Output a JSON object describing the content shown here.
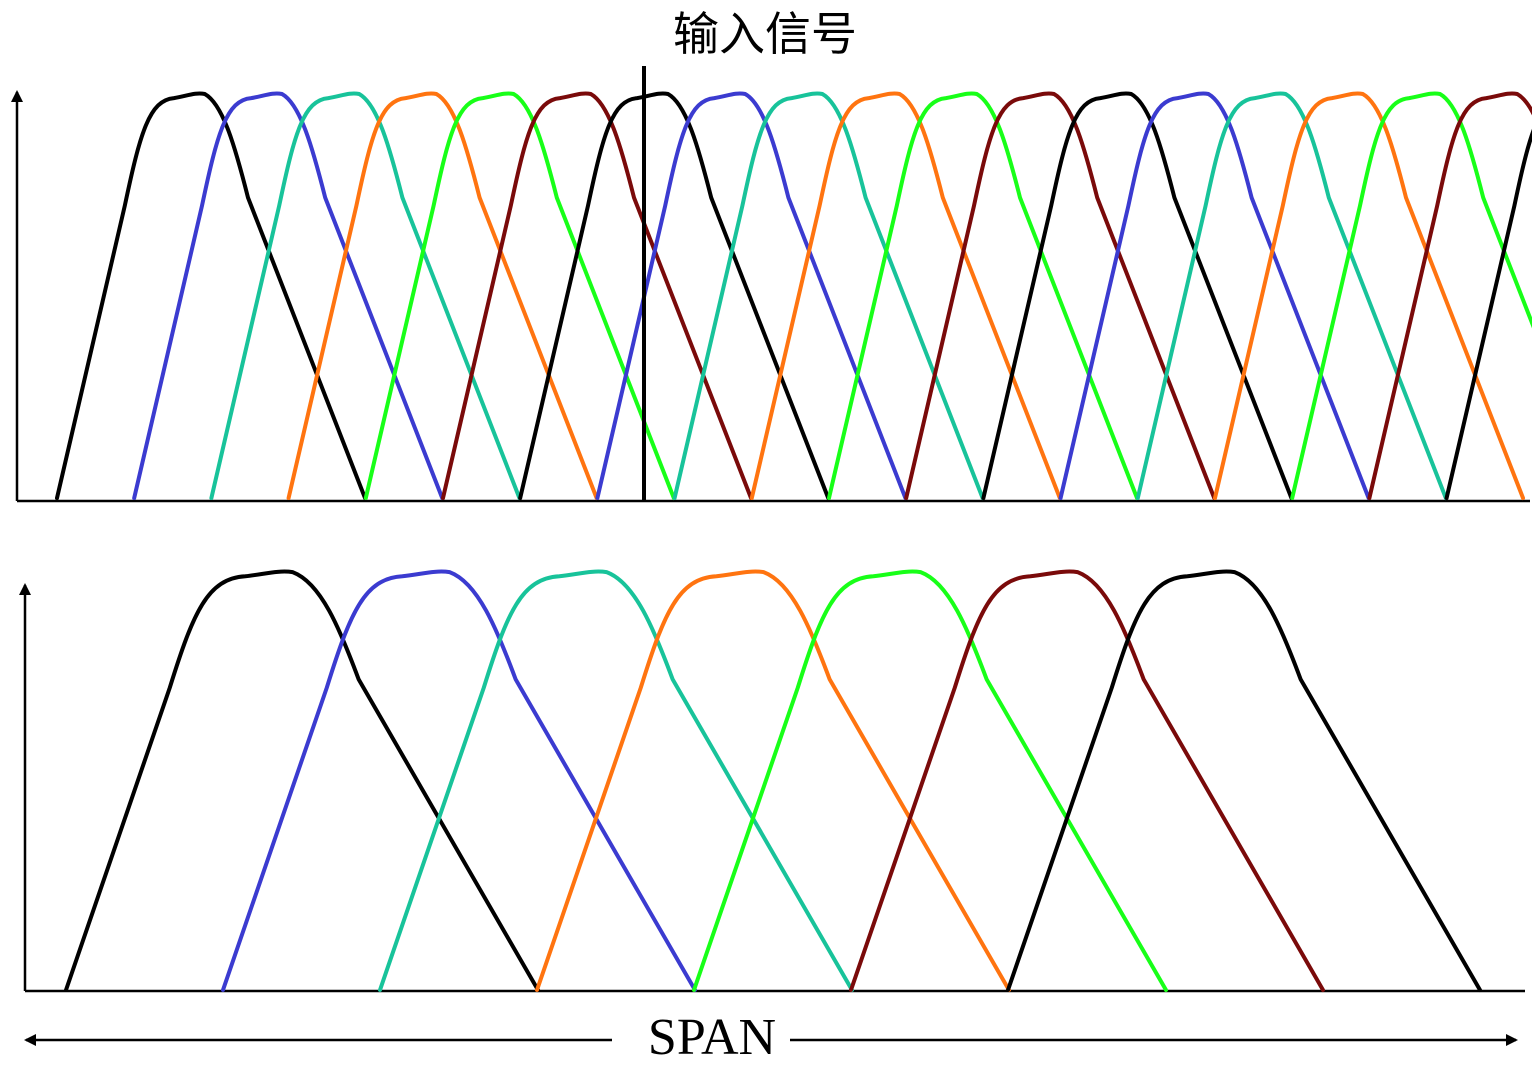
{
  "labels": {
    "input_signal": "输入信号",
    "span": "SPAN"
  },
  "colors": [
    "#000000",
    "#3b3bd0",
    "#18c39a",
    "#ff7410",
    "#18ff18",
    "#7a0a0a"
  ],
  "top_panel": {
    "filter_count": 19,
    "color_cycle": [
      "black",
      "blue",
      "teal",
      "orange",
      "green",
      "darkred"
    ]
  },
  "bottom_panel": {
    "filter_count": 7,
    "color_cycle": [
      "black",
      "blue",
      "teal",
      "orange",
      "green",
      "darkred",
      "black"
    ]
  }
}
